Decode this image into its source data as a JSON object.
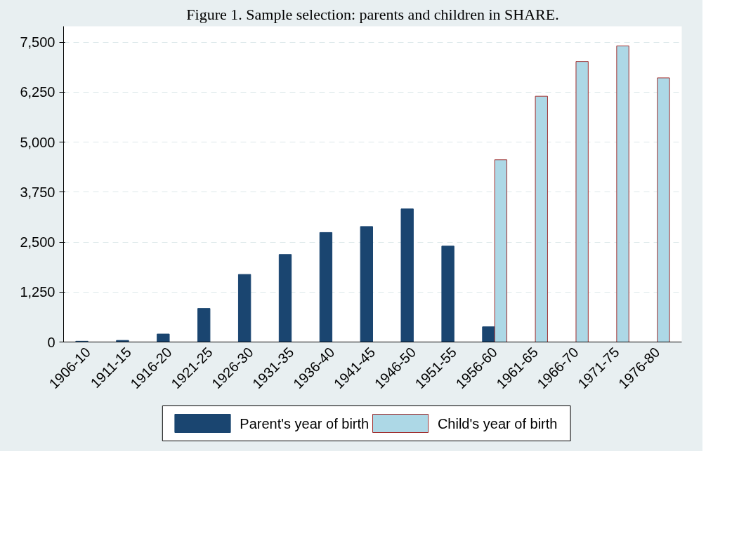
{
  "chart_data": {
    "type": "bar",
    "title": "Figure 1. Sample selection: parents and children in SHARE.",
    "categories": [
      "1906-10",
      "1911-15",
      "1916-20",
      "1921-25",
      "1926-30",
      "1931-35",
      "1936-40",
      "1941-45",
      "1946-50",
      "1951-55",
      "1956-60",
      "1961-65",
      "1966-70",
      "1971-75",
      "1976-80"
    ],
    "series": [
      {
        "name": "Parent's year of birth",
        "color": "#1a4570",
        "values": [
          20,
          40,
          200,
          840,
          1690,
          2190,
          2740,
          2890,
          3330,
          2400,
          380,
          null,
          null,
          null,
          null
        ]
      },
      {
        "name": "Child's year of birth",
        "color": "#add8e6",
        "values": [
          null,
          null,
          null,
          null,
          null,
          null,
          null,
          null,
          null,
          null,
          4560,
          6150,
          7020,
          7410,
          6610
        ]
      }
    ],
    "ylim": [
      0,
      7900
    ],
    "yticks": [
      {
        "value": 0,
        "label": "0"
      },
      {
        "value": 1250,
        "label": "1,250"
      },
      {
        "value": 2500,
        "label": "2,500"
      },
      {
        "value": 3750,
        "label": "3,750"
      },
      {
        "value": 5000,
        "label": "5,000"
      },
      {
        "value": 6250,
        "label": "6,250"
      },
      {
        "value": 7500,
        "label": "7,500"
      }
    ],
    "grid": "y",
    "legend": "bottom"
  }
}
